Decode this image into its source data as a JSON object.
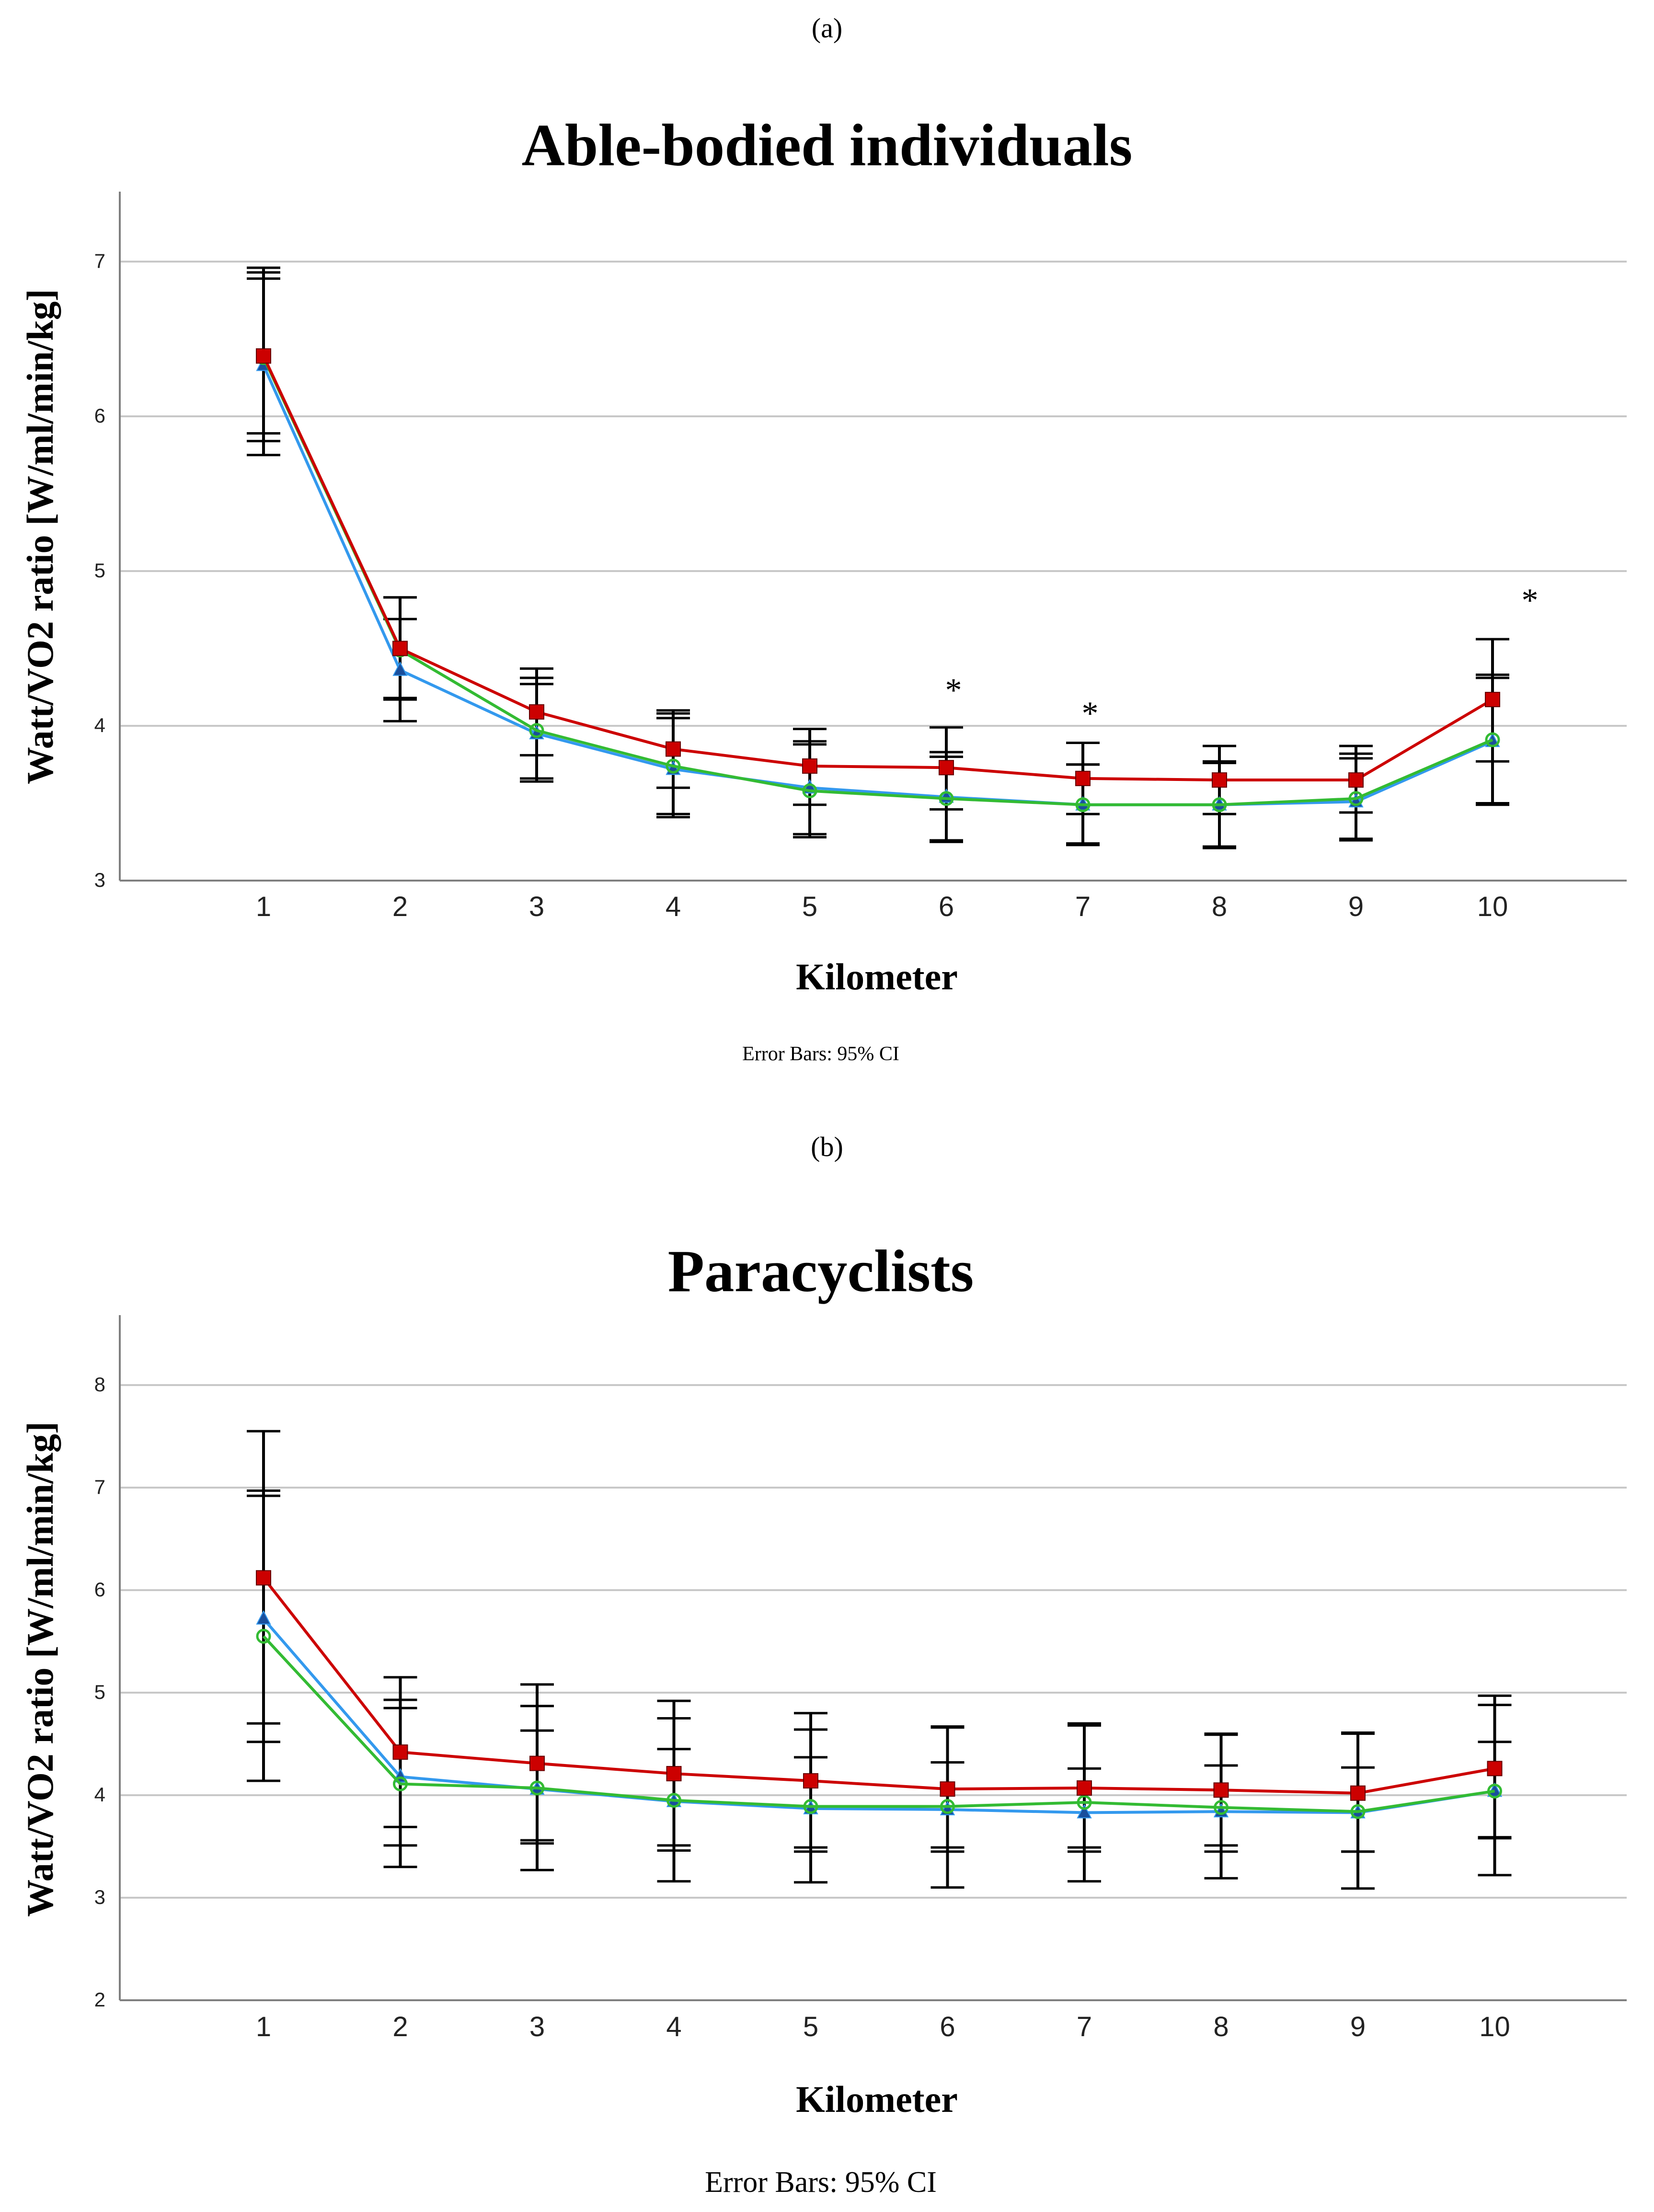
{
  "colors": {
    "gridline": "#c8c8c8",
    "axis": "#7f7f7f",
    "errorbar": "#000000",
    "series_red": "#cc0000",
    "series_blue": "#3399ee",
    "series_green": "#33bb33"
  },
  "chart_data": [
    {
      "panel_label": "(a)",
      "type": "line",
      "title": "Able-bodied individuals",
      "xlabel": "Kilometer",
      "ylabel": "Watt/VO2 ratio [W/ml/min/kg]",
      "footnote": "Error Bars: 95% CI",
      "categories": [
        "1",
        "2",
        "3",
        "4",
        "5",
        "6",
        "7",
        "8",
        "9",
        "10"
      ],
      "y_ticks": [
        "3",
        "4",
        "5",
        "6",
        "7"
      ],
      "ylim": [
        3,
        7.45
      ],
      "grid": true,
      "legend": "none",
      "significance_marks": [
        {
          "category": "6",
          "symbol": "*",
          "y": 4.16
        },
        {
          "category": "7",
          "symbol": "*",
          "y": 4.01
        },
        {
          "category": "10",
          "symbol": "*",
          "y": 4.74
        }
      ],
      "series": [
        {
          "name": "blue",
          "marker": "triangle",
          "values": [
            6.33,
            4.36,
            3.95,
            3.72,
            3.6,
            3.54,
            3.49,
            3.49,
            3.51,
            3.9
          ],
          "ci_low": [
            5.75,
            4.03,
            3.64,
            3.41,
            3.3,
            3.25,
            3.24,
            3.22,
            3.26,
            3.5
          ],
          "ci_high": [
            6.93,
            4.69,
            4.27,
            4.05,
            3.9,
            3.83,
            3.75,
            3.76,
            3.79,
            4.31
          ]
        },
        {
          "name": "green",
          "marker": "circle",
          "values": [
            6.38,
            4.49,
            3.97,
            3.74,
            3.58,
            3.53,
            3.49,
            3.49,
            3.53,
            3.91
          ],
          "ci_low": [
            5.84,
            4.17,
            3.66,
            3.43,
            3.28,
            3.26,
            3.23,
            3.21,
            3.27,
            3.49
          ],
          "ci_high": [
            6.96,
            4.83,
            4.31,
            4.08,
            3.88,
            3.8,
            3.75,
            3.77,
            3.82,
            4.33
          ]
        },
        {
          "name": "red",
          "marker": "square",
          "values": [
            6.39,
            4.5,
            4.09,
            3.85,
            3.74,
            3.73,
            3.66,
            3.65,
            3.65,
            4.17
          ],
          "ci_low": [
            5.89,
            4.18,
            3.81,
            3.6,
            3.49,
            3.46,
            3.43,
            3.43,
            3.44,
            3.77
          ],
          "ci_high": [
            6.89,
            4.83,
            4.37,
            4.1,
            3.98,
            3.99,
            3.89,
            3.87,
            3.87,
            4.56
          ]
        }
      ]
    },
    {
      "panel_label": "(b)",
      "type": "line",
      "title": "Paracyclists",
      "xlabel": "Kilometer",
      "ylabel": "Watt/VO2 ratio [W/ml/min/kg]",
      "footnote": "Error Bars: 95% CI",
      "categories": [
        "1",
        "2",
        "3",
        "4",
        "5",
        "6",
        "7",
        "8",
        "9",
        "10"
      ],
      "y_ticks": [
        "2",
        "3",
        "4",
        "5",
        "6",
        "7",
        "8"
      ],
      "ylim": [
        2,
        8.68
      ],
      "grid": true,
      "legend": "none",
      "significance_marks": [],
      "series": [
        {
          "name": "blue",
          "marker": "triangle",
          "values": [
            5.72,
            4.18,
            4.06,
            3.94,
            3.87,
            3.86,
            3.83,
            3.84,
            3.83,
            4.04
          ],
          "ci_low": [
            4.52,
            3.51,
            3.56,
            3.46,
            3.45,
            3.45,
            3.45,
            3.45,
            3.45,
            3.58
          ],
          "ci_high": [
            6.92,
            4.85,
            4.63,
            4.45,
            4.37,
            4.32,
            4.26,
            4.29,
            4.27,
            4.52
          ]
        },
        {
          "name": "green",
          "marker": "circle",
          "values": [
            5.55,
            4.11,
            4.07,
            3.95,
            3.89,
            3.89,
            3.93,
            3.88,
            3.84,
            4.04
          ],
          "ci_low": [
            4.14,
            3.3,
            3.27,
            3.16,
            3.15,
            3.1,
            3.16,
            3.19,
            3.09,
            3.22
          ],
          "ci_high": [
            6.97,
            4.93,
            4.87,
            4.75,
            4.64,
            4.67,
            4.7,
            4.59,
            4.6,
            4.88
          ]
        },
        {
          "name": "red",
          "marker": "square",
          "values": [
            6.12,
            4.42,
            4.31,
            4.21,
            4.14,
            4.06,
            4.07,
            4.05,
            4.02,
            4.26
          ],
          "ci_low": [
            4.7,
            3.69,
            3.53,
            3.51,
            3.49,
            3.49,
            3.49,
            3.51,
            3.45,
            3.59
          ],
          "ci_high": [
            7.55,
            5.15,
            5.08,
            4.92,
            4.8,
            4.66,
            4.68,
            4.6,
            4.61,
            4.97
          ]
        }
      ]
    }
  ]
}
